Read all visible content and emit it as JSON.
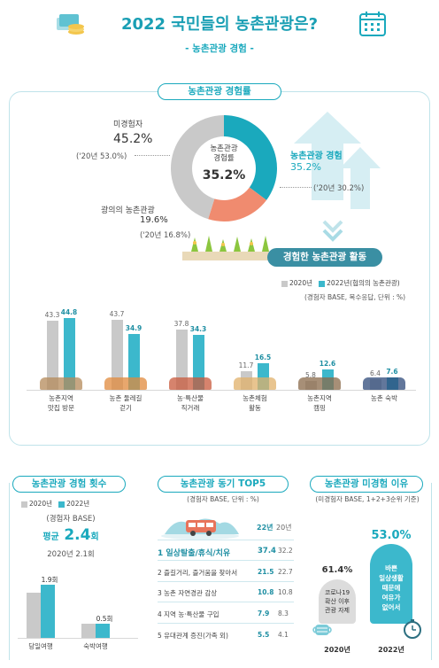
{
  "header": {
    "title": "2022 국민들의 농촌관광은?",
    "subtitle": "- 농촌관광 경험 -"
  },
  "experience": {
    "section_label": "농촌관광 경험률",
    "center_label": "농촌관광\n경험률",
    "center_value": "35.2%",
    "non_label": "미경험자",
    "non_value": "45.2%",
    "non_prev": "('20년 53.0%)",
    "exp_label": "농촌관광 경험",
    "exp_value": "35.2%",
    "exp_prev": "('20년 30.2%)",
    "wide_label": "광의의 농촌관광",
    "wide_value": "19.6%",
    "wide_prev": "('20년 16.8%)"
  },
  "activities": {
    "section_label": "경험한 농촌관광 활동",
    "legend_2020": "2020년",
    "legend_2022": "2022년(협의의 농촌관광)",
    "note": "(경험자 BASE, 복수응답, 단위 : %)"
  },
  "count": {
    "section_label": "농촌관광 경험 횟수",
    "legend_2020": "2020년",
    "legend_2022": "2022년",
    "base": "(경험자 BASE)",
    "avg_label": "평균",
    "avg_value": "2.4",
    "avg_unit": "회",
    "prev": "2020년  2.1회"
  },
  "motives": {
    "section_label": "농촌관광 동기 TOP5",
    "note": "(경험자 BASE, 단위 : %)",
    "col_22": "22년",
    "col_20": "20년",
    "rows": [
      {
        "label": "1 일상탈출/휴식/치유",
        "v22": "37.4",
        "v20": "32.2"
      },
      {
        "label": "2 즐길거리, 즐거움을 찾아서",
        "v22": "21.5",
        "v20": "22.7"
      },
      {
        "label": "3 농촌 자연경관 감상",
        "v22": "10.8",
        "v20": "10.8"
      },
      {
        "label": "4 지역 농·특산물 구입",
        "v22": "7.9",
        "v20": "8.3"
      },
      {
        "label": "5 유대관계 증진(가족 외)",
        "v22": "5.5",
        "v20": "4.1"
      }
    ]
  },
  "reasons": {
    "section_label": "농촌관광 미경험 이유",
    "note": "(미경험자 BASE, 1+2+3순위 기준)",
    "left_value": "61.4%",
    "left_text": "코로나19\n확산 이후\n관광 자제",
    "left_year": "2020년",
    "right_value": "53.0%",
    "right_text": "바쁜\n일상생활\n때문에\n여유가\n없어서",
    "right_year": "2022년"
  },
  "chart_data": [
    {
      "type": "bar",
      "title": "경험한 농촌관광 활동",
      "categories": [
        "농촌지역\n맛집 방문",
        "농촌 둘레길\n걷기",
        "농·특산물\n직거래",
        "농촌체험\n활동",
        "농촌지역\n캠핑",
        "농촌 숙박"
      ],
      "series": [
        {
          "name": "2020년",
          "values": [
            43.3,
            43.7,
            37.8,
            11.7,
            5.8,
            6.4
          ]
        },
        {
          "name": "2022년(협의의 농촌관광)",
          "values": [
            44.8,
            34.9,
            34.3,
            16.5,
            12.6,
            7.6
          ]
        }
      ],
      "ylim": [
        0,
        50
      ],
      "colors": {
        "2020": "#c9c9c9",
        "2022": "#3cb8cc"
      }
    },
    {
      "type": "bar",
      "title": "농촌관광 경험 횟수",
      "categories": [
        "당일여행",
        "숙박여행"
      ],
      "series": [
        {
          "name": "2020년",
          "values": [
            1.6,
            0.5
          ]
        },
        {
          "name": "2022년",
          "values": [
            1.9,
            0.5
          ]
        }
      ],
      "data_labels": [
        "1.9회",
        "0.5회"
      ],
      "ylim": [
        0,
        2.2
      ]
    },
    {
      "type": "pie",
      "title": "농촌관광 경험률",
      "categories": [
        "농촌관광 경험",
        "광의의 농촌관광",
        "미경험자"
      ],
      "values": [
        35.2,
        19.6,
        45.2
      ],
      "colors": [
        "#1aa9bd",
        "#f08b6f",
        "#c9c9c9"
      ]
    }
  ]
}
